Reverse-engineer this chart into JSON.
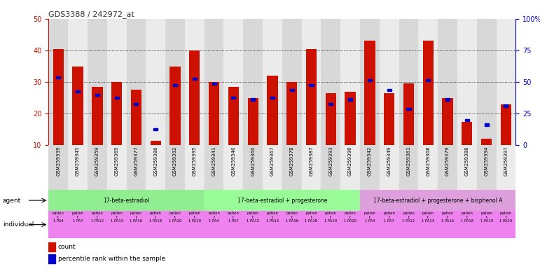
{
  "title": "GDS3388 / 242972_at",
  "gsm_labels": [
    "GSM259339",
    "GSM259345",
    "GSM259359",
    "GSM259365",
    "GSM259377",
    "GSM259386",
    "GSM259392",
    "GSM259395",
    "GSM259341",
    "GSM259346",
    "GSM259360",
    "GSM259367",
    "GSM259378",
    "GSM259387",
    "GSM259393",
    "GSM259396",
    "GSM259342",
    "GSM259349",
    "GSM259361",
    "GSM259368",
    "GSM259379",
    "GSM259388",
    "GSM259394",
    "GSM259397"
  ],
  "count_values": [
    40.5,
    35.0,
    28.5,
    30.0,
    27.5,
    11.5,
    35.0,
    40.0,
    30.0,
    28.5,
    25.0,
    32.0,
    30.0,
    40.5,
    26.5,
    27.0,
    43.0,
    26.5,
    29.5,
    43.0,
    25.0,
    17.5,
    12.0,
    23.0
  ],
  "percentile_values": [
    31.5,
    27.0,
    26.0,
    25.0,
    23.0,
    15.0,
    29.0,
    31.0,
    29.5,
    25.0,
    24.5,
    25.0,
    27.5,
    29.0,
    23.0,
    24.5,
    30.5,
    27.5,
    21.5,
    30.5,
    24.5,
    18.0,
    16.5,
    22.5
  ],
  "ylim_left": [
    10,
    50
  ],
  "ylim_right": [
    0,
    100
  ],
  "yticks_left": [
    10,
    20,
    30,
    40,
    50
  ],
  "yticks_right": [
    0,
    25,
    50,
    75,
    100
  ],
  "ytick_labels_right": [
    "0",
    "25",
    "50",
    "75",
    "100%"
  ],
  "bar_color": "#cc1100",
  "percentile_color": "#0000cc",
  "background_color": "#ffffff",
  "agent_groups": [
    {
      "label": "17-beta-estradiol",
      "start": 0,
      "end": 8,
      "color": "#90ee90"
    },
    {
      "label": "17-beta-estradiol + progesterone",
      "start": 8,
      "end": 16,
      "color": "#98fb98"
    },
    {
      "label": "17-beta-estradiol + progesterone + bisphenol A",
      "start": 16,
      "end": 24,
      "color": "#dda0dd"
    }
  ],
  "individual_color": "#ee82ee",
  "individual_labels": [
    "patien\nt\n1 PA4",
    "patien\nt\n1 PA7",
    "patien\nt\n1 PA12",
    "patien\nt\n1 PA13",
    "patien\nt\n1 PA16",
    "patien\nt\n1 PA18",
    "patien\nt\n1 PA19",
    "patien\nt\n1 PA20",
    "patien\nt\n1 PA4",
    "patien\nt\n1 PA7",
    "patien\nt\n1 PA12",
    "patien\nt\n1 PA13",
    "patien\nt\n1 PA16",
    "patien\nt\n1 PA18",
    "patien\nt\n1 PA19",
    "patien\nt\n1 PA20",
    "patien\nt\n1 PA4",
    "patien\nt\n1 PA7",
    "patien\nt\n1 PA12",
    "patien\nt\n1 PA13",
    "patien\nt\n1 PA16",
    "patien\nt\n1 PA18",
    "patien\nt\n1 PA19",
    "patien\nt\n1 PA20"
  ],
  "grid_color": "#000000",
  "tick_color_left": "#cc1100",
  "tick_color_right": "#0000cc",
  "legend_items": [
    {
      "label": "count",
      "color": "#cc1100"
    },
    {
      "label": "percentile rank within the sample",
      "color": "#0000cc"
    }
  ],
  "stripe_colors": [
    "#d8d8d8",
    "#ebebeb"
  ]
}
